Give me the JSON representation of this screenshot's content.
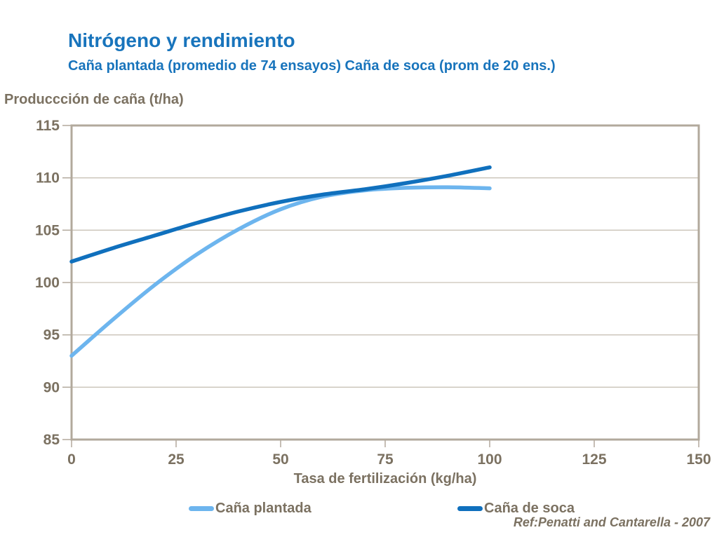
{
  "header": {
    "title": "Nitrógeno y rendimiento",
    "subtitle": "Caña plantada (promedio de 74 ensayos) Caña de soca (prom de 20 ens.)"
  },
  "footer": {
    "reference": "Ref:Penatti and Cantarella - 2007"
  },
  "colors": {
    "title_blue": "#1874BC",
    "text_brown": "#7B7161",
    "axis_border": "#B2A99C",
    "gridline": "#C9C2B6",
    "series_plantada": "#6DB5EE",
    "series_soca": "#1070BD",
    "background": "#FFFFFF"
  },
  "chart_data": {
    "type": "line",
    "title": "Nitrógeno y rendimiento",
    "subtitle": "Caña plantada (promedio de 74 ensayos) Caña de soca (prom de 20 ens.)",
    "xlabel": "Tasa de fertilización (kg/ha)",
    "ylabel": "Produccción de caña (t/ha)",
    "xlim": [
      0,
      150
    ],
    "ylim": [
      85,
      115
    ],
    "xticks": [
      0,
      25,
      50,
      75,
      100,
      125,
      150
    ],
    "yticks": [
      85,
      90,
      95,
      100,
      105,
      110,
      115
    ],
    "grid": "horizontal",
    "legend_position": "bottom",
    "annotation": "Ref:Penatti and Cantarella - 2007",
    "series": [
      {
        "name": "Caña plantada",
        "color": "#6DB5EE",
        "x": [
          0,
          10,
          20,
          30,
          40,
          50,
          60,
          70,
          80,
          90,
          100
        ],
        "y": [
          93,
          96.5,
          99.8,
          102.7,
          105.1,
          107.0,
          108.2,
          108.8,
          109.05,
          109.1,
          109.0
        ]
      },
      {
        "name": "Caña de soca",
        "color": "#1070BD",
        "x": [
          0,
          10,
          20,
          30,
          40,
          50,
          60,
          70,
          80,
          90,
          100
        ],
        "y": [
          102,
          103.3,
          104.5,
          105.7,
          106.8,
          107.7,
          108.4,
          108.9,
          109.5,
          110.2,
          111.0
        ]
      }
    ]
  }
}
